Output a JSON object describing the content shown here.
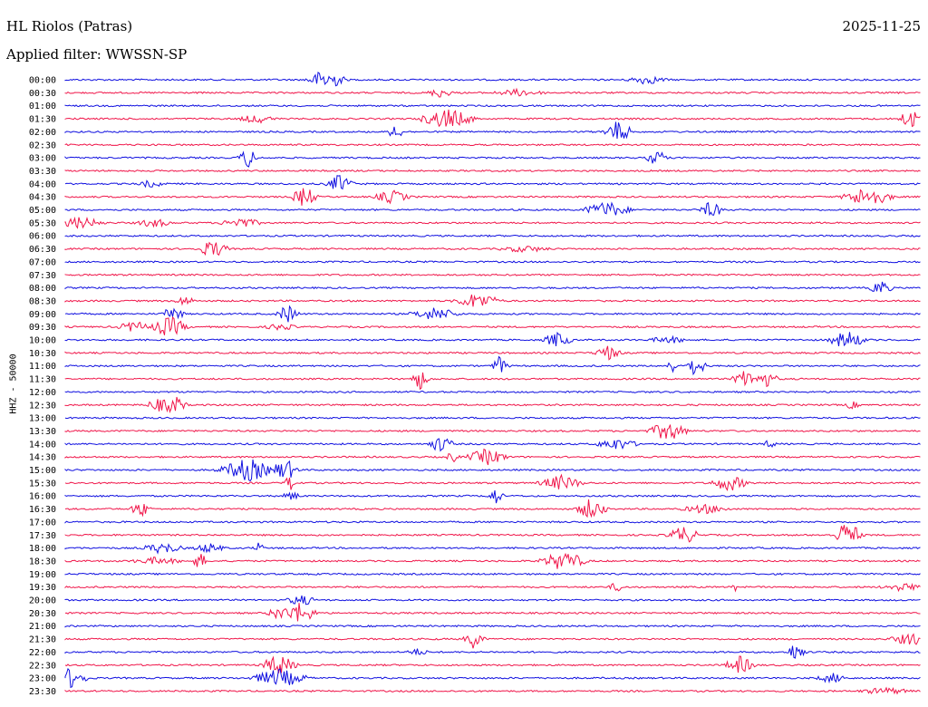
{
  "header": {
    "station": "HL Riolos (Patras)",
    "date": "2025-11-25",
    "filter": "Applied filter: WWSSN-SP"
  },
  "chart_data": {
    "type": "line",
    "title": "HL Riolos (Patras)",
    "date": "2025-11-25",
    "filter": "Applied filter: WWSSN-SP",
    "ylabel": "HHZ - 50000",
    "colors": {
      "even": "#1010e0",
      "odd": "#f0164a"
    },
    "rows": [
      "00:00",
      "00:30",
      "01:00",
      "01:30",
      "02:00",
      "02:30",
      "03:00",
      "03:30",
      "04:00",
      "04:30",
      "05:00",
      "05:30",
      "06:00",
      "06:30",
      "07:00",
      "07:30",
      "08:00",
      "08:30",
      "09:00",
      "09:30",
      "10:00",
      "10:30",
      "11:00",
      "11:30",
      "12:00",
      "12:30",
      "13:00",
      "13:30",
      "14:00",
      "14:30",
      "15:00",
      "15:30",
      "16:00",
      "16:30",
      "17:00",
      "17:30",
      "18:00",
      "18:30",
      "19:00",
      "19:30",
      "20:00",
      "20:30",
      "21:00",
      "21:30",
      "22:00",
      "22:30",
      "23:00",
      "23:30"
    ]
  }
}
